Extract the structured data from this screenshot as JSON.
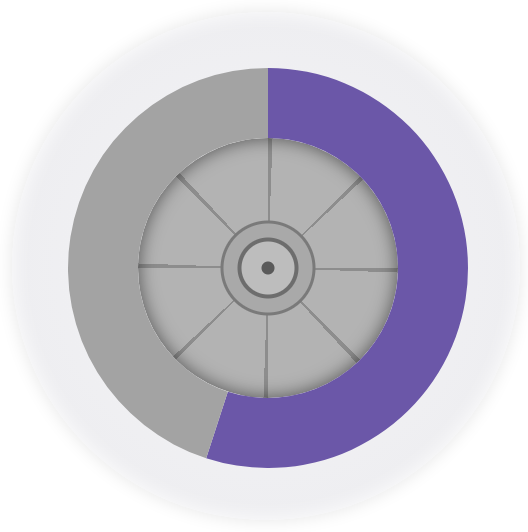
{
  "chart_data": {
    "type": "doughnut",
    "values": [
      55,
      45
    ],
    "colors": [
      "#6b57a8",
      "#a3a3a3"
    ]
  }
}
